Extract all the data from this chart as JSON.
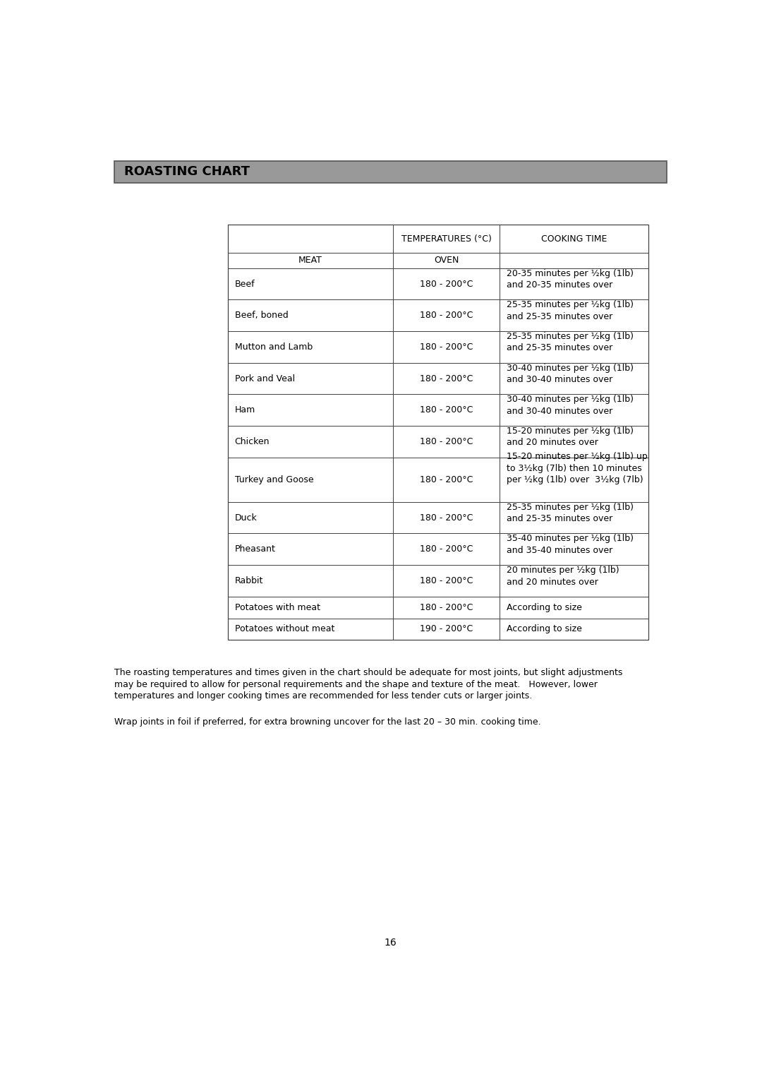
{
  "title": "ROASTING CHART",
  "title_bg": "#999999",
  "title_text_color": "#000000",
  "page_bg": "#ffffff",
  "rows": [
    [
      "Beef",
      "180 - 200°C",
      "20-35 minutes per ½kg (1lb)\nand 20-35 minutes over"
    ],
    [
      "Beef, boned",
      "180 - 200°C",
      "25-35 minutes per ½kg (1lb)\nand 25-35 minutes over"
    ],
    [
      "Mutton and Lamb",
      "180 - 200°C",
      "25-35 minutes per ½kg (1lb)\nand 25-35 minutes over"
    ],
    [
      "Pork and Veal",
      "180 - 200°C",
      "30-40 minutes per ½kg (1lb)\nand 30-40 minutes over"
    ],
    [
      "Ham",
      "180 - 200°C",
      "30-40 minutes per ½kg (1lb)\nand 30-40 minutes over"
    ],
    [
      "Chicken",
      "180 - 200°C",
      "15-20 minutes per ½kg (1lb)\nand 20 minutes over"
    ],
    [
      "Turkey and Goose",
      "180 - 200°C",
      "15-20 minutes per ½kg (1lb) up\nto 3½kg (7lb) then 10 minutes\nper ½kg (1lb) over  3½kg (7lb)"
    ],
    [
      "Duck",
      "180 - 200°C",
      "25-35 minutes per ½kg (1lb)\nand 25-35 minutes over"
    ],
    [
      "Pheasant",
      "180 - 200°C",
      "35-40 minutes per ½kg (1lb)\nand 35-40 minutes over"
    ],
    [
      "Rabbit",
      "180 - 200°C",
      "20 minutes per ½kg (1lb)\nand 20 minutes over"
    ],
    [
      "Potatoes with meat",
      "180 - 200°C",
      "According to size"
    ],
    [
      "Potatoes without meat",
      "190 - 200°C",
      "According to size"
    ]
  ],
  "footnote1": "The roasting temperatures and times given in the chart should be adequate for most joints, but slight adjustments\nmay be required to allow for personal requirements and the shape and texture of the meat.   However, lower\ntemperatures and longer cooking times are recommended for less tender cuts or larger joints.",
  "footnote2": "Wrap joints in foil if preferred, for extra browning uncover for the last 20 – 30 min. cooking time.",
  "page_number": "16",
  "font_size_title": 13,
  "font_size_header": 9.0,
  "font_size_table": 9.0,
  "font_size_footnote": 9.0
}
